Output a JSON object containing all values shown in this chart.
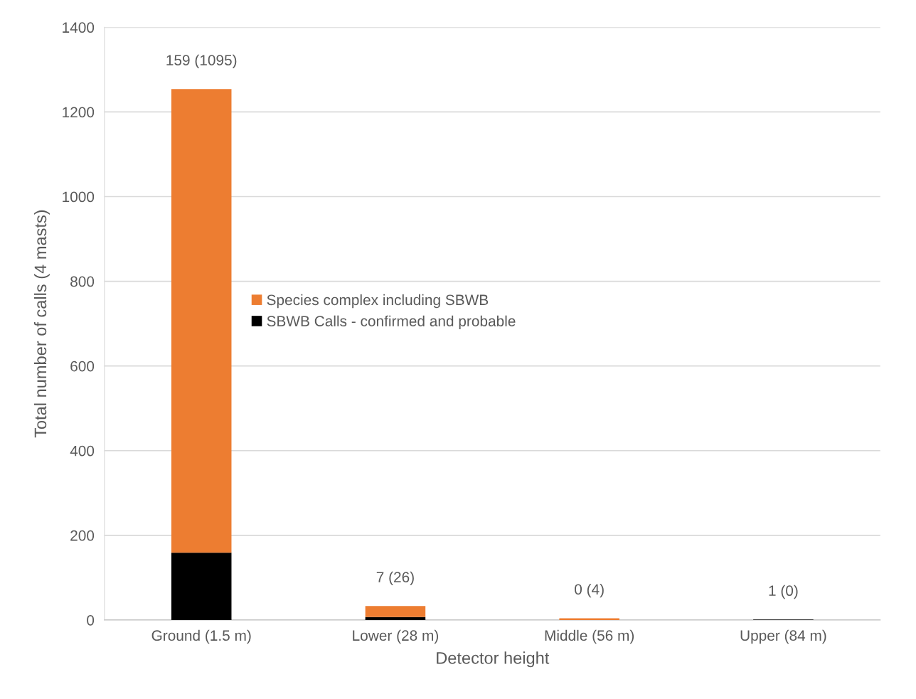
{
  "chart_data": {
    "type": "bar",
    "stacked": true,
    "xlabel": "Detector height",
    "ylabel": "Total number of calls (4 masts)",
    "categories": [
      "Ground (1.5 m)",
      "Lower (28 m)",
      "Middle (56 m)",
      "Upper (84 m)"
    ],
    "series": [
      {
        "name": "SBWB Calls - confirmed and probable",
        "color": "#000000",
        "values": [
          159,
          7,
          0,
          1
        ]
      },
      {
        "name": "Species complex including SBWB",
        "color": "#ed7d31",
        "values": [
          1095,
          26,
          4,
          0
        ]
      }
    ],
    "totals": [
      "159 (1095)",
      "7 (26)",
      "0 (4)",
      "1 (0)"
    ],
    "ylim": [
      0,
      1400
    ],
    "yticks": [
      0,
      200,
      400,
      600,
      800,
      1000,
      1200,
      1400
    ],
    "grid": "y",
    "legend": "center"
  }
}
